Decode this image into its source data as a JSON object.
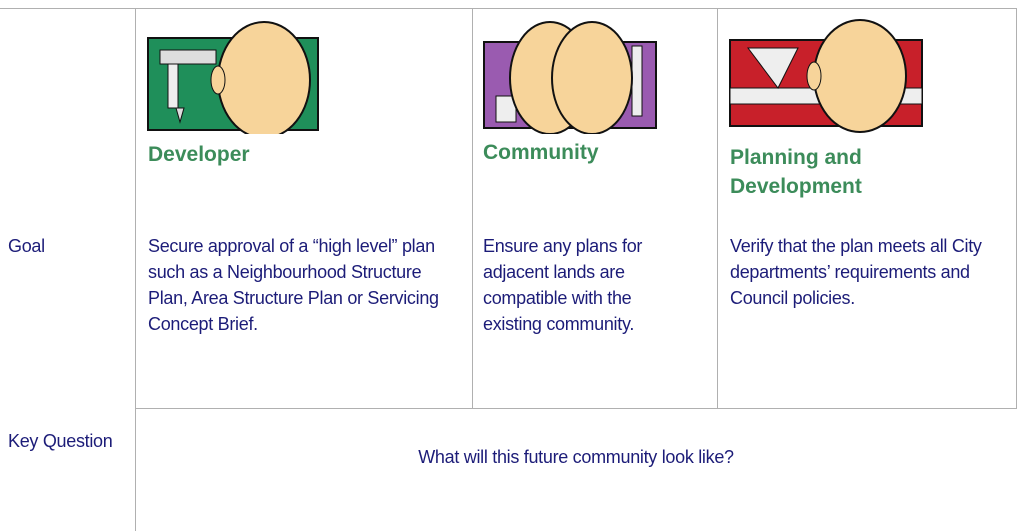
{
  "table": {
    "columns": [
      {
        "heading": "Developer",
        "goal": "Secure approval of a “high level” plan such as a Neighbourhood Structure Plan, Area Structure Plan or Servicing Concept Brief."
      },
      {
        "heading": "Community",
        "goal": "Ensure any plans for adjacent lands are compatible with the existing community."
      },
      {
        "heading": "Planning and Development",
        "goal": "Verify that the plan meets all City departments’ requirements and Council policies."
      }
    ],
    "goal_label": "Goal",
    "key_question_label": "Key Question",
    "key_question": "What will this future community look like?"
  }
}
